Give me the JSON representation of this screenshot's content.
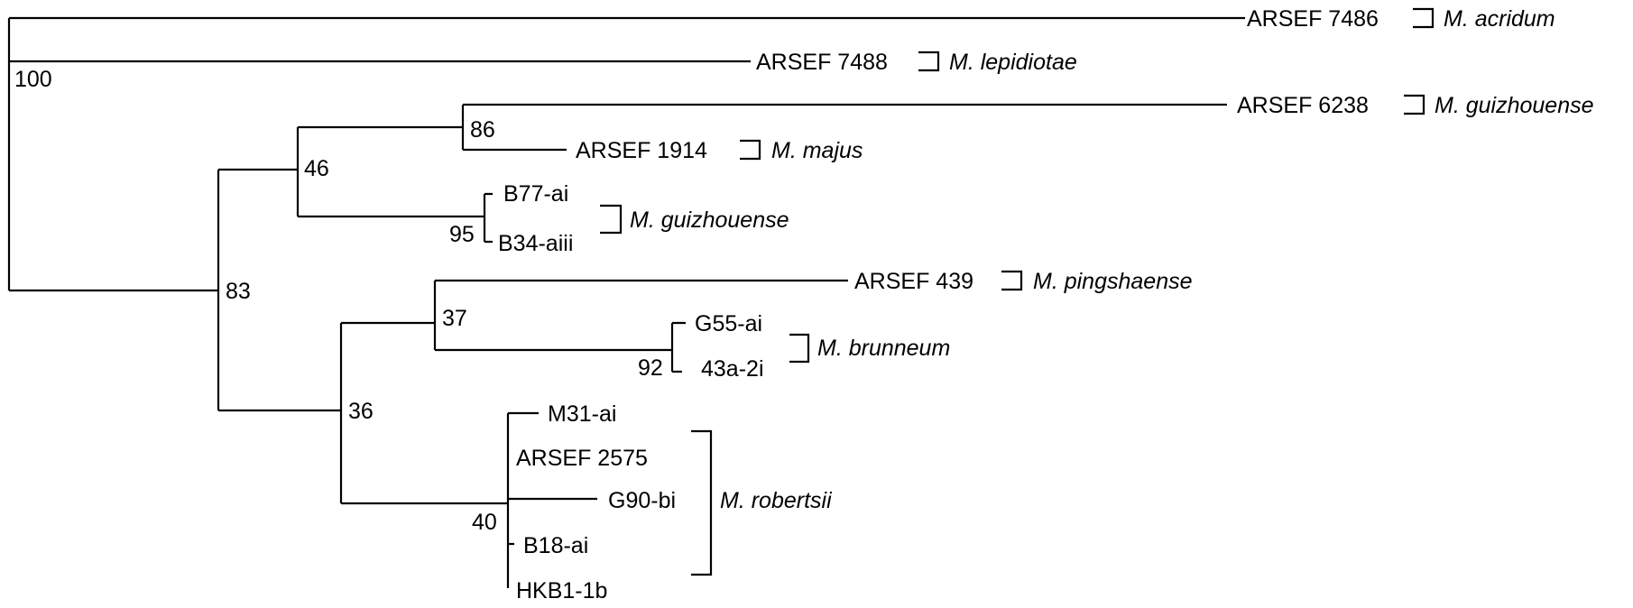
{
  "tree": {
    "taxa": [
      {
        "id": "arsef7486",
        "label": "ARSEF 7486",
        "species": "M. acridum"
      },
      {
        "id": "arsef7488",
        "label": "ARSEF 7488",
        "species": "M. lepidiotae"
      },
      {
        "id": "arsef6238",
        "label": "ARSEF 6238",
        "species": "M. guizhouense"
      },
      {
        "id": "arsef1914",
        "label": "ARSEF 1914",
        "species": "M. majus"
      },
      {
        "id": "b77ai",
        "label": "B77-ai"
      },
      {
        "id": "b34aiii",
        "label": "B34-aiii"
      },
      {
        "id": "arsef439",
        "label": "ARSEF 439",
        "species": "M. pingshaense"
      },
      {
        "id": "g55ai",
        "label": "G55-ai"
      },
      {
        "id": "a43a2i",
        "label": "43a-2i"
      },
      {
        "id": "m31ai",
        "label": "M31-ai"
      },
      {
        "id": "arsef2575",
        "label": "ARSEF 2575"
      },
      {
        "id": "g90bi",
        "label": "G90-bi"
      },
      {
        "id": "b18ai",
        "label": "B18-ai"
      },
      {
        "id": "hkb11b",
        "label": "HKB1-1b"
      }
    ],
    "support_values": {
      "node_root": "100",
      "node_guiz_majus": "86",
      "node_46": "46",
      "node_b77_b34": "95",
      "node_83": "83",
      "node_37": "37",
      "node_g55_43a": "92",
      "node_36": "36",
      "node_robertsii": "40"
    },
    "clade_brackets": {
      "guizhouense": "M. guizhouense",
      "brunneum": "M. brunneum",
      "robertsii": "M. robertsii"
    },
    "topology": "((ARSEF 7486),(ARSEF 7488,(((ARSEF 6238,ARSEF 1914)86,(B77-ai,B34-aiii)95)46,((ARSEF 439,(G55-ai,43a-2i)92)37,(M31-ai,ARSEF 2575,G90-bi,B18-ai,HKB1-1b)40)36)83)100)"
  }
}
